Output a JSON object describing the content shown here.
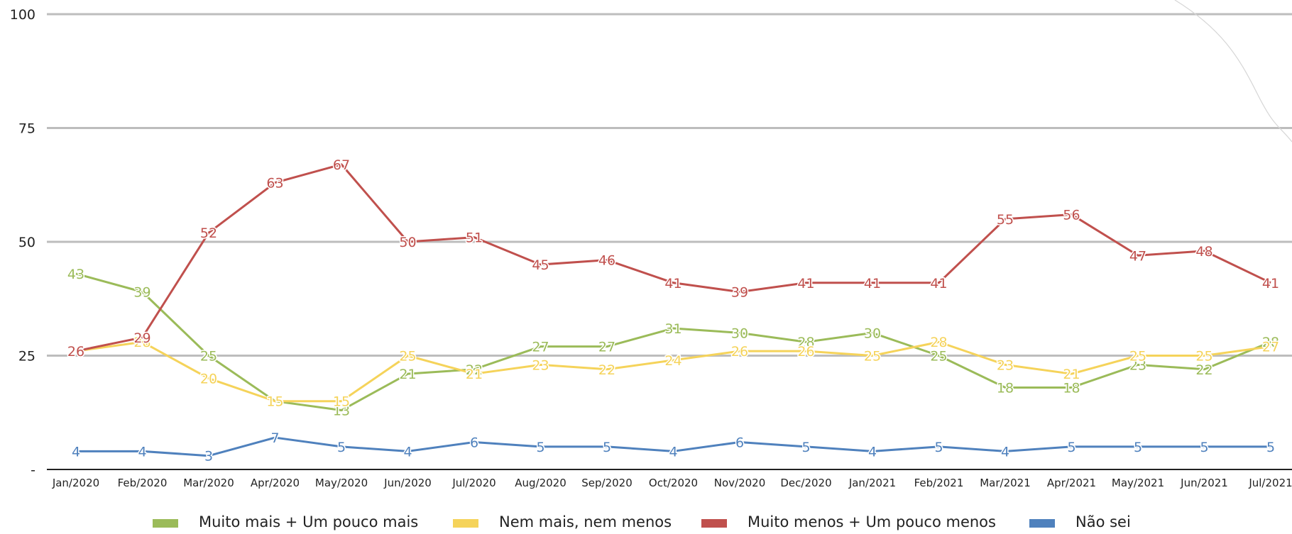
{
  "chart_data": {
    "type": "line",
    "categories": [
      "Jan/2020",
      "Feb/2020",
      "Mar/2020",
      "Apr/2020",
      "May/2020",
      "Jun/2020",
      "Jul/2020",
      "Aug/2020",
      "Sep/2020",
      "Oct/2020",
      "Nov/2020",
      "Dec/2020",
      "Jan/2021",
      "Feb/2021",
      "Mar/2021",
      "Apr/2021",
      "May/2021",
      "Jun/2021",
      "Jul/2021"
    ],
    "y_ticks": [
      "-",
      "25",
      "50",
      "75",
      "100"
    ],
    "ylim": [
      0,
      100
    ],
    "grid": true,
    "legend_position": "bottom",
    "series": [
      {
        "name": "Muito mais + Um pouco mais",
        "color": "#9bbb59",
        "values": [
          43,
          39,
          25,
          15,
          13,
          21,
          22,
          27,
          27,
          31,
          30,
          28,
          30,
          25,
          18,
          18,
          23,
          22,
          28
        ]
      },
      {
        "name": "Nem mais, nem menos",
        "color": "#f5d35a",
        "values": [
          26,
          28,
          20,
          15,
          15,
          25,
          21,
          23,
          22,
          24,
          26,
          26,
          25,
          28,
          23,
          21,
          25,
          25,
          27
        ]
      },
      {
        "name": "Muito menos + Um pouco menos",
        "color": "#c0504d",
        "values": [
          26,
          29,
          52,
          63,
          67,
          50,
          51,
          45,
          46,
          41,
          39,
          41,
          41,
          41,
          55,
          56,
          47,
          48,
          41
        ]
      },
      {
        "name": "Não sei",
        "color": "#4f81bd",
        "values": [
          4,
          4,
          3,
          7,
          5,
          4,
          6,
          5,
          5,
          4,
          6,
          5,
          4,
          5,
          4,
          5,
          5,
          5,
          5
        ]
      }
    ]
  }
}
